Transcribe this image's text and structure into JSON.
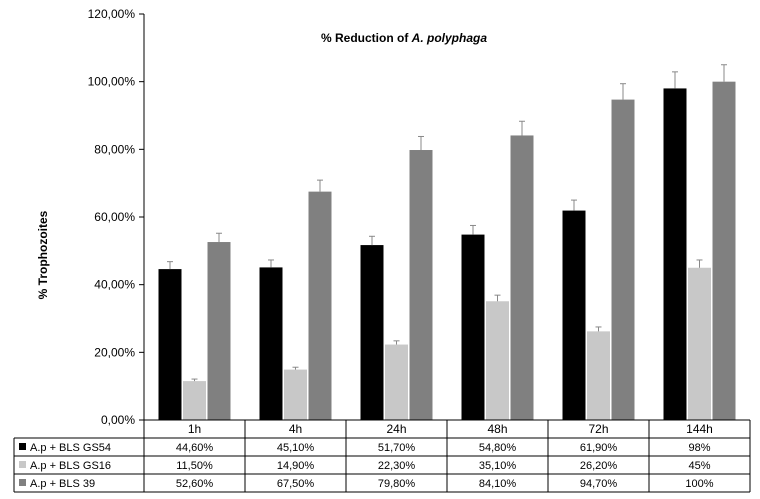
{
  "chart_data": {
    "type": "bar",
    "title": {
      "prefix": "% Reduction of ",
      "italic": "A. polyphaga"
    },
    "ylabel": "% Trophozoites",
    "xlabel": "",
    "ylim": [
      0,
      120
    ],
    "y_ticks": [
      0,
      20,
      40,
      60,
      80,
      100,
      120
    ],
    "y_tick_labels": [
      "0,00%",
      "20,00%",
      "40,00%",
      "60,00%",
      "80,00%",
      "100,00%",
      "120,00%"
    ],
    "categories": [
      "1h",
      "4h",
      "24h",
      "48h",
      "72h",
      "144h"
    ],
    "grid": false,
    "legend": "data-table",
    "series": [
      {
        "name": "A.p + BLS GS54",
        "color": "#000000",
        "values": [
          44.6,
          45.1,
          51.7,
          54.8,
          61.9,
          98
        ],
        "error": [
          2.2,
          2.2,
          2.6,
          2.7,
          3.1,
          4.9
        ],
        "labels": [
          "44,60%",
          "45,10%",
          "51,70%",
          "54,80%",
          "61,90%",
          "98%"
        ]
      },
      {
        "name": "A.p + BLS GS16",
        "color": "#c8c8c8",
        "values": [
          11.5,
          14.9,
          22.3,
          35.1,
          26.2,
          45
        ],
        "error": [
          0.6,
          0.7,
          1.1,
          1.8,
          1.3,
          2.3
        ],
        "labels": [
          "11,50%",
          "14,90%",
          "22,30%",
          "35,10%",
          "26,20%",
          "45%"
        ]
      },
      {
        "name": "A.p + BLS 39",
        "color": "#808080",
        "values": [
          52.6,
          67.5,
          79.8,
          84.1,
          94.7,
          100
        ],
        "error": [
          2.6,
          3.4,
          4.0,
          4.2,
          4.7,
          5.0
        ],
        "labels": [
          "52,60%",
          "67,50%",
          "79,80%",
          "84,10%",
          "94,70%",
          "100%"
        ]
      }
    ]
  }
}
